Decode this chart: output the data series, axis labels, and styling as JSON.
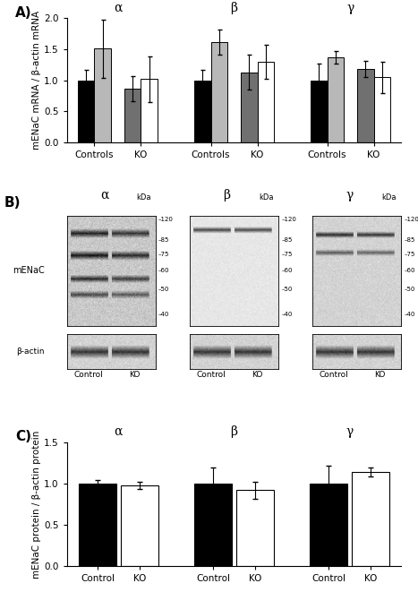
{
  "panel_A": {
    "ylabel": "mENaC mRNA / β-actin mRNA",
    "groups": [
      "α",
      "β",
      "γ"
    ],
    "bar_values": [
      [
        1.0,
        1.51,
        0.87,
        1.02
      ],
      [
        1.0,
        1.62,
        1.13,
        1.3
      ],
      [
        1.0,
        1.37,
        1.19,
        1.05
      ]
    ],
    "bar_errors": [
      [
        0.17,
        0.47,
        0.2,
        0.37
      ],
      [
        0.17,
        0.2,
        0.28,
        0.27
      ],
      [
        0.27,
        0.1,
        0.13,
        0.25
      ]
    ],
    "bar_colors": [
      "#000000",
      "#b8b8b8",
      "#707070",
      "#ffffff"
    ],
    "ylim": [
      0,
      2.0
    ],
    "yticks": [
      0,
      0.5,
      1.0,
      1.5,
      2.0
    ]
  },
  "panel_B": {
    "groups": [
      "α",
      "β",
      "γ"
    ],
    "kda_labels": [
      "120",
      "85",
      "75",
      "60",
      "50",
      "40"
    ],
    "ylabel_menac": "mENaC",
    "ylabel_bactin": "β-actin"
  },
  "panel_C": {
    "ylabel": "mENaC protein / β-actin protein",
    "groups": [
      "α",
      "β",
      "γ"
    ],
    "bar_values": [
      [
        1.0,
        0.98
      ],
      [
        1.0,
        0.92
      ],
      [
        1.0,
        1.14
      ]
    ],
    "bar_errors": [
      [
        0.04,
        0.04
      ],
      [
        0.2,
        0.1
      ],
      [
        0.22,
        0.05
      ]
    ],
    "bar_colors": [
      "#000000",
      "#ffffff"
    ],
    "ylim": [
      0,
      1.5
    ],
    "yticks": [
      0,
      0.5,
      1.0,
      1.5
    ]
  }
}
